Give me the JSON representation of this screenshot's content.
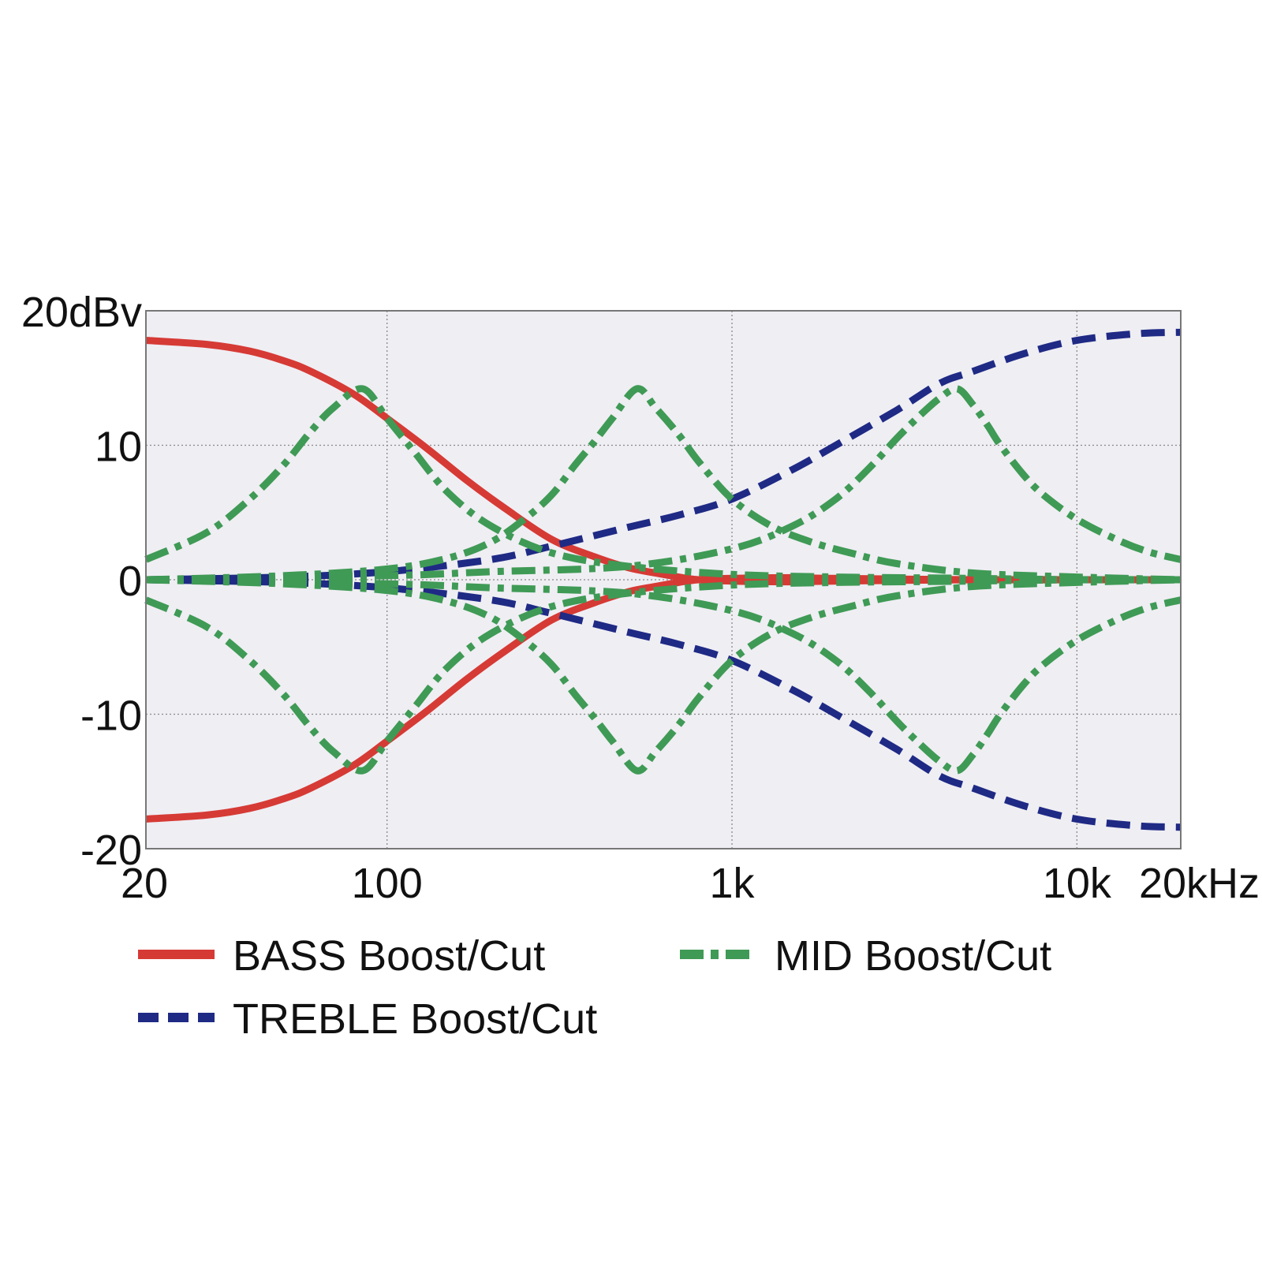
{
  "chart_data": {
    "type": "line",
    "title": "",
    "xlabel": "",
    "ylabel": "",
    "x_scale": "log",
    "xlim": [
      20,
      20000
    ],
    "ylim": [
      -20,
      20
    ],
    "grid": true,
    "legend_position": "bottom",
    "x_ticks": [
      {
        "value": 20,
        "label": "20"
      },
      {
        "value": 100,
        "label": "100"
      },
      {
        "value": 1000,
        "label": "1k"
      },
      {
        "value": 10000,
        "label": "10k"
      },
      {
        "value": 20000,
        "label": "20kHz"
      }
    ],
    "y_ticks": [
      {
        "value": 20,
        "label": "20dBv"
      },
      {
        "value": 10,
        "label": "10"
      },
      {
        "value": 0,
        "label": "0"
      },
      {
        "value": -10,
        "label": "-10"
      },
      {
        "value": -20,
        "label": "-20"
      }
    ],
    "colors": {
      "bass": "#d63a35",
      "treble": "#1f2a85",
      "mid": "#3f9a55",
      "plot_bg": "#efeef3",
      "grid": "#888888"
    },
    "series": [
      {
        "name": "BASS Boost/Cut",
        "key": "bass",
        "style": "solid",
        "curves": [
          {
            "x": [
              20,
              30,
              40,
              50,
              60,
              80,
              100,
              130,
              170,
              220,
              300,
              400,
              500,
              600,
              700,
              800,
              1000,
              1500,
              2000,
              5000,
              10000,
              20000
            ],
            "y": [
              17.8,
              17.5,
              17.0,
              16.3,
              15.5,
              13.8,
              12.0,
              9.8,
              7.4,
              5.3,
              3.0,
              1.7,
              0.9,
              0.5,
              0.2,
              0.0,
              -0.1,
              -0.15,
              -0.1,
              0.0,
              0.0,
              0.0
            ]
          },
          {
            "x": [
              20,
              30,
              40,
              50,
              60,
              80,
              100,
              130,
              170,
              220,
              300,
              400,
              500,
              600,
              700,
              800,
              1000,
              1500,
              2000,
              5000,
              10000,
              20000
            ],
            "y": [
              -17.8,
              -17.5,
              -17.0,
              -16.3,
              -15.5,
              -13.8,
              -12.0,
              -9.8,
              -7.4,
              -5.3,
              -3.0,
              -1.7,
              -0.9,
              -0.5,
              -0.2,
              0.0,
              0.1,
              0.15,
              0.1,
              0.0,
              0.0,
              0.0
            ]
          }
        ]
      },
      {
        "name": "TREBLE Boost/Cut",
        "key": "treble",
        "style": "dashed",
        "curves": [
          {
            "x": [
              20,
              50,
              100,
              200,
              300,
              500,
              700,
              1000,
              1500,
              2000,
              3000,
              4000,
              5000,
              7000,
              10000,
              15000,
              20000
            ],
            "y": [
              0.0,
              0.2,
              0.6,
              1.5,
              2.5,
              3.9,
              4.8,
              6.0,
              8.2,
              10.0,
              12.6,
              14.6,
              15.5,
              16.8,
              17.8,
              18.3,
              18.4
            ]
          },
          {
            "x": [
              20,
              50,
              100,
              200,
              300,
              500,
              700,
              1000,
              1500,
              2000,
              3000,
              4000,
              5000,
              7000,
              10000,
              15000,
              20000
            ],
            "y": [
              0.0,
              -0.2,
              -0.6,
              -1.5,
              -2.5,
              -3.9,
              -4.8,
              -6.0,
              -8.2,
              -10.0,
              -12.6,
              -14.6,
              -15.5,
              -16.8,
              -17.8,
              -18.3,
              -18.4
            ]
          }
        ]
      },
      {
        "name": "MID Boost/Cut",
        "key": "mid",
        "style": "dashdot",
        "curves": [
          {
            "x": [
              20,
              30,
              40,
              50,
              60,
              70,
              85,
              100,
              120,
              150,
              200,
              300,
              500,
              1000,
              2000,
              5000,
              10000,
              20000
            ],
            "y": [
              1.5,
              3.5,
              6.0,
              8.5,
              11.0,
              12.8,
              14.2,
              12.0,
              9.5,
              6.5,
              4.0,
              2.0,
              1.0,
              0.4,
              0.2,
              0.1,
              0.0,
              0.0
            ]
          },
          {
            "x": [
              20,
              30,
              40,
              50,
              60,
              70,
              85,
              100,
              120,
              150,
              200,
              300,
              500,
              1000,
              2000,
              5000,
              10000,
              20000
            ],
            "y": [
              -1.5,
              -3.5,
              -6.0,
              -8.5,
              -11.0,
              -12.8,
              -14.2,
              -12.0,
              -9.5,
              -6.5,
              -4.0,
              -2.0,
              -1.0,
              -0.4,
              -0.2,
              -0.1,
              0.0,
              0.0
            ]
          },
          {
            "x": [
              20,
              50,
              100,
              150,
              200,
              250,
              300,
              350,
              400,
              450,
              530,
              600,
              700,
              800,
              1000,
              1300,
              1700,
              2200,
              3000,
              5000,
              10000,
              20000
            ],
            "y": [
              0.0,
              0.3,
              0.8,
              1.6,
              2.8,
              4.5,
              6.3,
              8.5,
              10.3,
              12.0,
              14.2,
              12.8,
              10.8,
              8.8,
              6.0,
              4.0,
              2.8,
              2.0,
              1.2,
              0.5,
              0.2,
              0.0
            ]
          },
          {
            "x": [
              20,
              50,
              100,
              150,
              200,
              250,
              300,
              350,
              400,
              450,
              530,
              600,
              700,
              800,
              1000,
              1300,
              1700,
              2200,
              3000,
              5000,
              10000,
              20000
            ],
            "y": [
              0.0,
              -0.3,
              -0.8,
              -1.6,
              -2.8,
              -4.5,
              -6.3,
              -8.5,
              -10.3,
              -12.0,
              -14.2,
              -12.8,
              -10.8,
              -8.8,
              -6.0,
              -4.0,
              -2.8,
              -2.0,
              -1.2,
              -0.5,
              -0.2,
              0.0
            ]
          },
          {
            "x": [
              20,
              100,
              200,
              500,
              1000,
              1500,
              2000,
              2500,
              3000,
              3500,
              4000,
              4500,
              5000,
              5500,
              6000,
              7000,
              8000,
              10000,
              13000,
              16000,
              20000
            ],
            "y": [
              0.0,
              0.3,
              0.6,
              1.0,
              2.3,
              4.0,
              6.0,
              8.3,
              10.5,
              12.2,
              13.5,
              14.2,
              13.0,
              11.5,
              10.0,
              7.8,
              6.3,
              4.5,
              3.0,
              2.1,
              1.5
            ]
          },
          {
            "x": [
              20,
              100,
              200,
              500,
              1000,
              1500,
              2000,
              2500,
              3000,
              3500,
              4000,
              4500,
              5000,
              5500,
              6000,
              7000,
              8000,
              10000,
              13000,
              16000,
              20000
            ],
            "y": [
              0.0,
              -0.3,
              -0.6,
              -1.0,
              -2.3,
              -4.0,
              -6.0,
              -8.3,
              -10.5,
              -12.2,
              -13.5,
              -14.2,
              -13.0,
              -11.5,
              -10.0,
              -7.8,
              -6.3,
              -4.5,
              -3.0,
              -2.1,
              -1.5
            ]
          }
        ]
      }
    ],
    "legend": [
      {
        "label": "BASS Boost/Cut",
        "key": "bass",
        "style": "solid"
      },
      {
        "label": "MID Boost/Cut",
        "key": "mid",
        "style": "dashdot"
      },
      {
        "label": "TREBLE Boost/Cut",
        "key": "treble",
        "style": "dashed"
      }
    ]
  }
}
